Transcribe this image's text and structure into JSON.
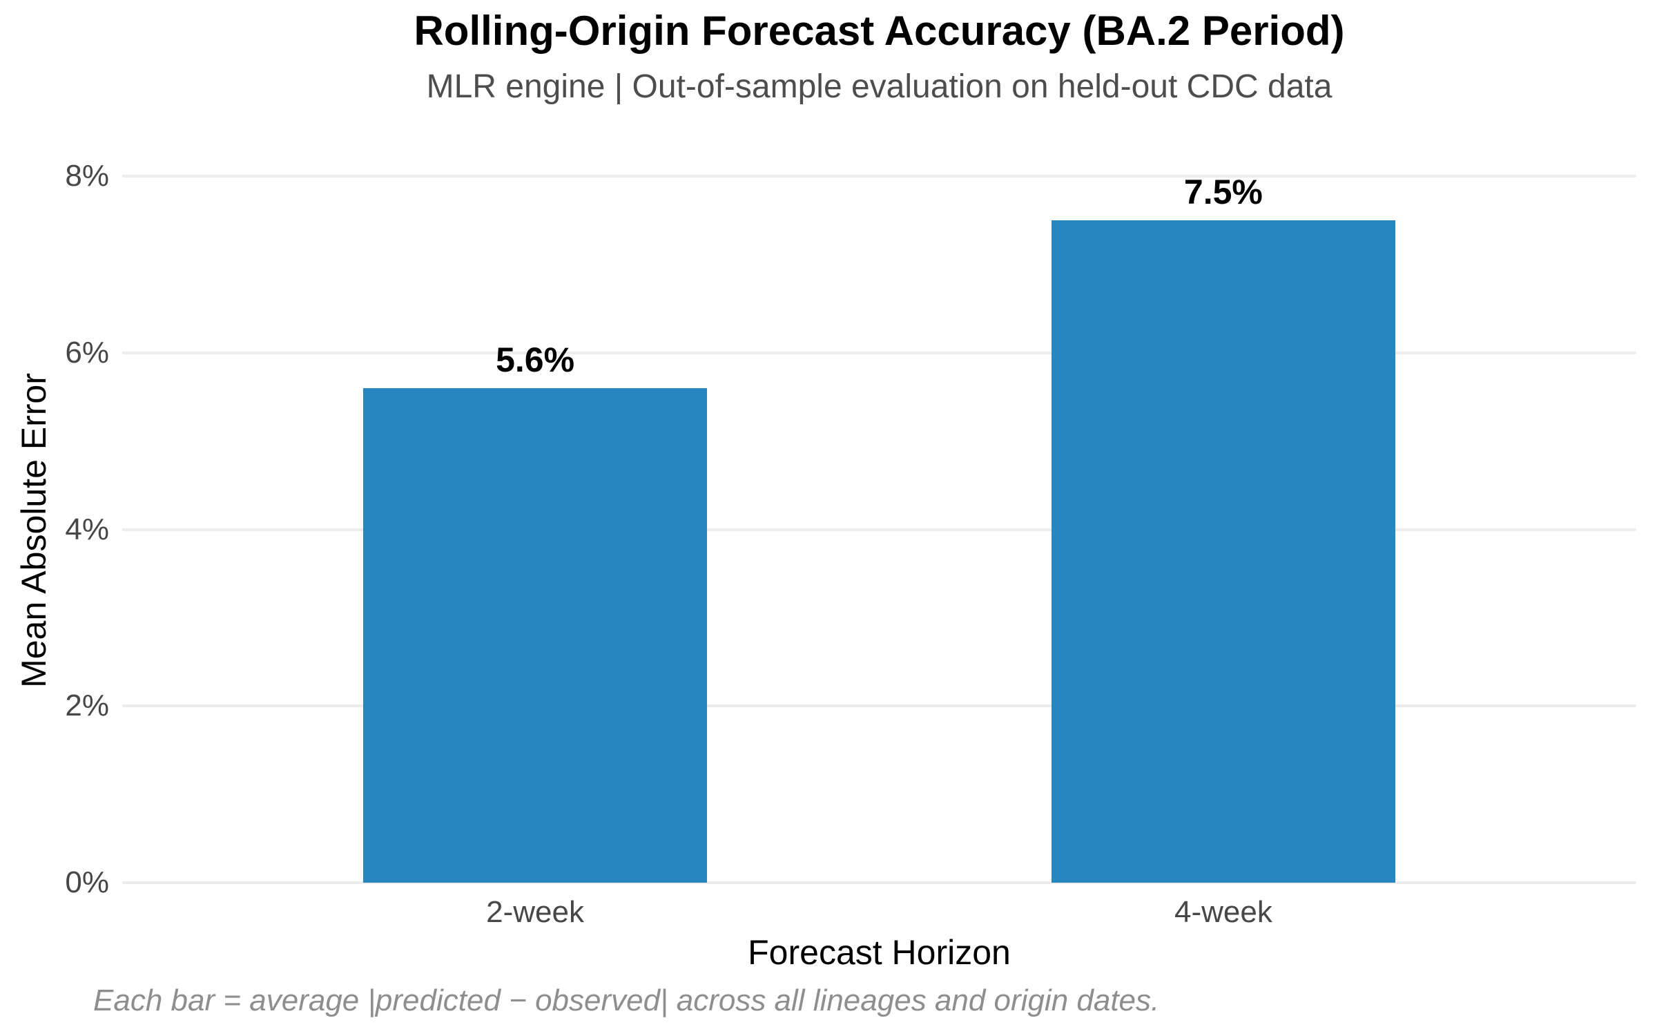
{
  "title": "Rolling-Origin Forecast Accuracy (BA.2 Period)",
  "subtitle": "MLR engine | Out-of-sample evaluation on held-out CDC data",
  "footnote": "Each bar = average |predicted − observed| across all lineages and origin dates.",
  "chart_data": {
    "type": "bar",
    "title": "Rolling-Origin Forecast Accuracy (BA.2 Period)",
    "subtitle": "MLR engine | Out-of-sample evaluation on held-out CDC data",
    "categories": [
      "2-week",
      "4-week"
    ],
    "values": [
      5.6,
      7.5
    ],
    "value_labels": [
      "5.6%",
      "7.5%"
    ],
    "xlabel": "Forecast Horizon",
    "ylabel": "Mean Absolute Error",
    "ylim": [
      0,
      8
    ],
    "yticks": [
      0,
      2,
      4,
      6,
      8
    ],
    "ytick_labels": [
      "0%",
      "2%",
      "4%",
      "6%",
      "8%"
    ],
    "grid": "horizontal",
    "legend": "none",
    "bar_color": "#2786BF",
    "grid_color": "#ECECEC",
    "tick_label_color": "#474747",
    "annotation": "Each bar = average |predicted − observed| across all lineages and origin dates."
  }
}
